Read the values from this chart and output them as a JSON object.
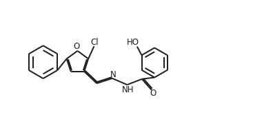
{
  "background_color": "#ffffff",
  "line_color": "#1a1a1a",
  "line_width": 1.4,
  "font_size": 8.5,
  "figsize": [
    3.67,
    1.67
  ],
  "dpi": 100,
  "xlim": [
    0,
    10
  ],
  "ylim": [
    -0.5,
    4.5
  ]
}
